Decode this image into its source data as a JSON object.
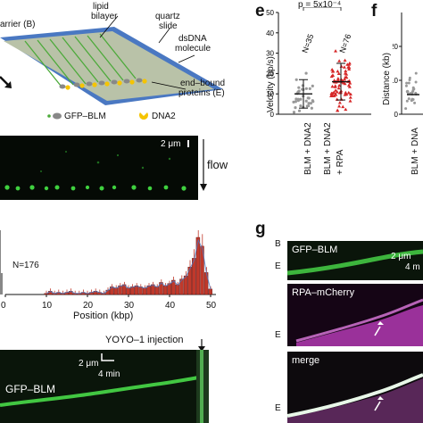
{
  "schematic": {
    "barrier": "arrier (B)",
    "lipid_bilayer_1": "lipid",
    "lipid_bilayer_2": "bilayer",
    "quartz_1": "quartz",
    "quartz_2": "slide",
    "dsdna_1": "dsDNA",
    "dsdna_2": "molecule",
    "endbound_1": "end–bound",
    "endbound_2": "proteins (E)",
    "legend_gfp": "GFP–BLM",
    "legend_dna2": "DNA2",
    "colors": {
      "slide": "#4a78c2",
      "bilayer": "#b9c2a8",
      "dna": "#4caa3a",
      "gfp": "#888888",
      "dna2": "#f5c400"
    }
  },
  "flow_image": {
    "scale": "2 μm",
    "flow_label": "flow"
  },
  "histogram": {
    "n_label": "N=176",
    "xlabel": "Position (kbp)",
    "xticks": [
      "0",
      "10",
      "20",
      "30",
      "40",
      "50"
    ]
  },
  "chart_data": [
    {
      "type": "bar",
      "panel": "histogram",
      "xlabel": "Position (kbp)",
      "xlim": [
        0,
        50
      ],
      "annotation": "N=176",
      "x": [
        10,
        11,
        12,
        13,
        14,
        15,
        16,
        17,
        18,
        19,
        20,
        21,
        22,
        23,
        24,
        25,
        26,
        27,
        28,
        29,
        30,
        31,
        32,
        33,
        34,
        35,
        36,
        37,
        38,
        39,
        40,
        41,
        42,
        43,
        44,
        45,
        46,
        47,
        48,
        49,
        50
      ],
      "values": [
        0.01,
        0.03,
        0.01,
        0.02,
        0.01,
        0.02,
        0.03,
        0.01,
        0.01,
        0.02,
        0.01,
        0.02,
        0.03,
        0.02,
        0.01,
        0.04,
        0.07,
        0.06,
        0.08,
        0.09,
        0.06,
        0.07,
        0.08,
        0.07,
        0.06,
        0.08,
        0.09,
        0.07,
        0.11,
        0.08,
        0.1,
        0.13,
        0.09,
        0.14,
        0.17,
        0.25,
        0.33,
        0.52,
        0.44,
        0.2,
        0.05
      ],
      "bar_color": "#c0392b"
    },
    {
      "type": "scatter",
      "panel": "e",
      "ylabel": "Velocity (bp/s)",
      "pvalue": "p = 5x10⁻⁴",
      "categories": [
        "BLM + DNA2",
        "BLM + DNA2 + RPA"
      ],
      "n_labels": [
        "N=35",
        "N=76"
      ],
      "series": [
        {
          "name": "BLM + DNA2",
          "color": "#999999",
          "mean": 10,
          "sd": 7
        },
        {
          "name": "BLM + DNA2 + RPA",
          "color": "#d62728",
          "mean": 16,
          "sd": 9
        }
      ]
    },
    {
      "type": "scatter",
      "panel": "f",
      "ylabel": "Distance (kb)",
      "categories": [
        "BLM + DNA"
      ]
    }
  ],
  "panel_e": {
    "letter": "e",
    "pvalue": "p = 5x10⁻⁴",
    "ylabel": "Velocity (bp/s)",
    "yticks": [
      "0",
      "10",
      "20",
      "30",
      "40",
      "50"
    ],
    "n1": "N=35",
    "n2": "N=76",
    "cat1": "BLM + DNA2",
    "cat2a": "BLM + DNA2",
    "cat2b": "+ RPA"
  },
  "panel_f": {
    "letter": "f",
    "ylabel": "Distance (kb)",
    "yticks": [
      "0",
      "10",
      "20"
    ],
    "cat1": "BLM + DNA"
  },
  "kymo_bottom": {
    "event": "YOYO–1 injection",
    "scale": "2 μm",
    "time": "4 min",
    "channel": "GFP–BLM"
  },
  "panel_g": {
    "letter": "g",
    "b_label": "B",
    "e_label": "E",
    "ch1": "GFP–BLM",
    "ch2": "RPA–mCherry",
    "ch3": "merge",
    "scale": "2 μm",
    "time": "4 m"
  }
}
